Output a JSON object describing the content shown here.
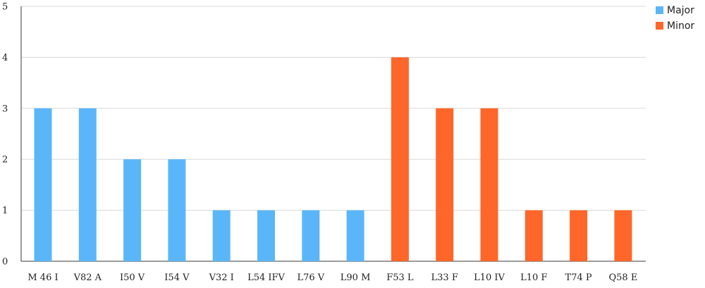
{
  "chart_data": {
    "type": "bar",
    "categories": [
      "M 46 I",
      "V82 A",
      "I50 V",
      "I54 V",
      "V32 I",
      "L54 IFV",
      "L76 V",
      "L90 M",
      "F53 L",
      "L33 F",
      "L10 IV",
      "L10 F",
      "T74 P",
      "Q58 E"
    ],
    "values": [
      3,
      3,
      2,
      2,
      1,
      1,
      1,
      1,
      4,
      3,
      3,
      1,
      1,
      1
    ],
    "groups": [
      "Major",
      "Major",
      "Major",
      "Major",
      "Major",
      "Major",
      "Major",
      "Major",
      "Minor",
      "Minor",
      "Minor",
      "Minor",
      "Minor",
      "Minor"
    ],
    "series": [
      {
        "name": "Major",
        "color": "#5bb6f9"
      },
      {
        "name": "Minor",
        "color": "#ff6629"
      }
    ],
    "title": "",
    "xlabel": "",
    "ylabel": "",
    "ylim": [
      0,
      5
    ],
    "yticks": [
      "0",
      "1",
      "2",
      "3",
      "4",
      "5"
    ],
    "grid": "horizontal",
    "legend": "top-right"
  }
}
